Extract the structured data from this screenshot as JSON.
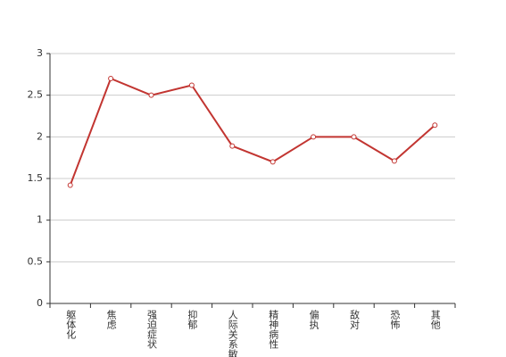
{
  "chart_data": {
    "type": "line",
    "categories": [
      "躯体化",
      "焦虑",
      "强迫症状",
      "抑郁",
      "人际关系敏感",
      "精神病性",
      "偏执",
      "敌对",
      "恐怖",
      "其他"
    ],
    "values": [
      1.42,
      2.7,
      2.5,
      2.62,
      1.89,
      1.7,
      2.0,
      2.0,
      1.71,
      2.14
    ],
    "color": "#c23531",
    "ylim": [
      0,
      3
    ],
    "yticks": [
      0,
      0.5,
      1,
      1.5,
      2,
      2.5,
      3
    ],
    "grid": true
  }
}
